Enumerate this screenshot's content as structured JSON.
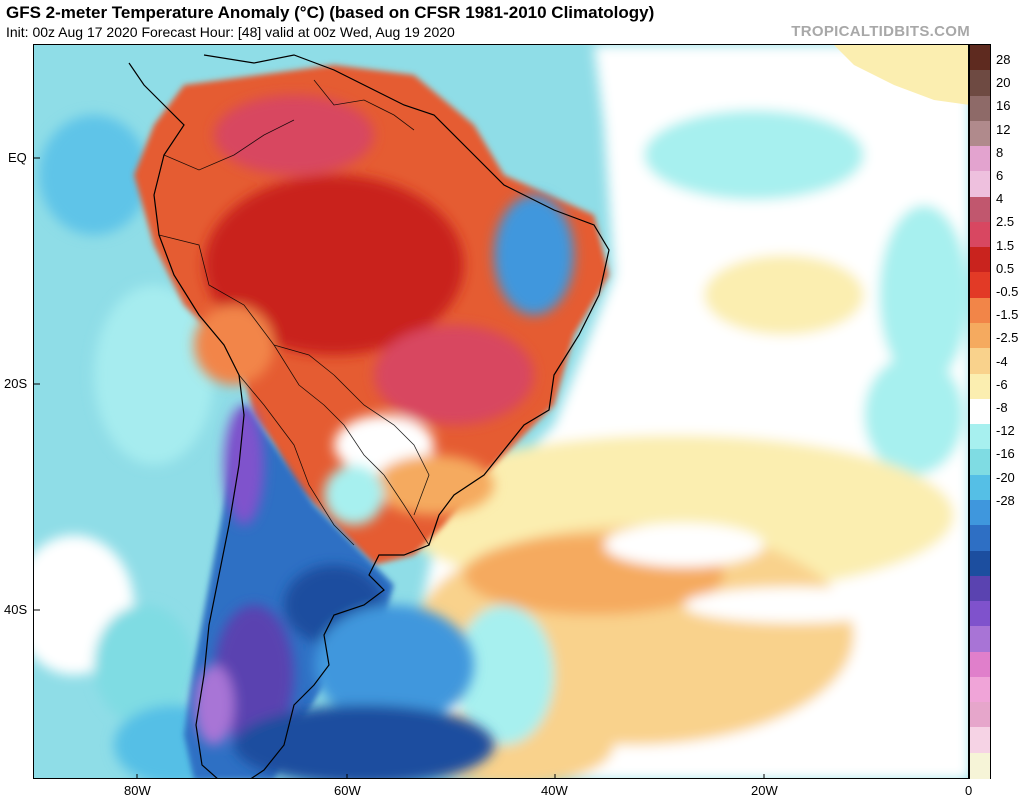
{
  "header": {
    "title": "GFS 2-meter Temperature Anomaly (°C) (based on CFSR 1981-2010 Climatology)",
    "subtitle": "Init: 00z Aug 17 2020   Forecast Hour: [48]   valid at 00z Wed, Aug 19 2020",
    "brand": "TROPICALTIDBITS.COM"
  },
  "axes": {
    "x_ticks": [
      "80W",
      "60W",
      "40W",
      "20W",
      "0"
    ],
    "y_ticks": [
      "EQ",
      "20S",
      "40S"
    ]
  },
  "legend": {
    "labels": [
      "28",
      "20",
      "16",
      "12",
      "8",
      "6",
      "4",
      "2.5",
      "1.5",
      "0.5",
      "-0.5",
      "-1.5",
      "-2.5",
      "-4",
      "-6",
      "-8",
      "-12",
      "-16",
      "-20",
      "-28"
    ],
    "colors": [
      "#5e2a1f",
      "#6e4a42",
      "#8e6a68",
      "#b08a8c",
      "#e3a3cf",
      "#eec0de",
      "#c1576e",
      "#d84761",
      "#c9231e",
      "#e23a26",
      "#f28548",
      "#f5aa5f",
      "#f9d28c",
      "#fbeeb0",
      "#ffffff",
      "#a7f0ef",
      "#7fdce3",
      "#55bfe6",
      "#3f97dd",
      "#2e6fc4",
      "#1c4e9f",
      "#5a43b0",
      "#7f52cc",
      "#a874d6",
      "#e07fcb",
      "#f0a4d8",
      "#e6a6cb",
      "#f6d3e5",
      "#f6f4d7"
    ]
  },
  "map": {
    "ocean_color": "#8fdde7",
    "cold_color": "#2e6fc4",
    "warm_color": "#e55b30",
    "border_color": "#000000"
  }
}
